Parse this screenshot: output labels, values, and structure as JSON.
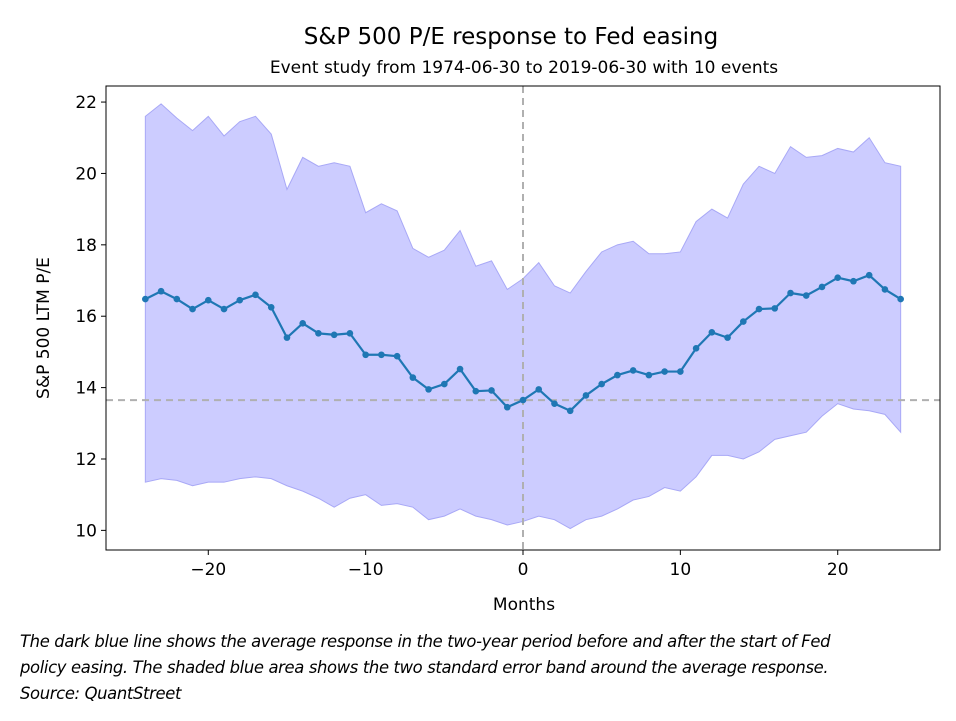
{
  "chart_data": {
    "type": "line",
    "title": "S&P 500 P/E response to Fed easing",
    "subtitle": "Event study from 1974-06-30 to 2019-06-30 with 10 events",
    "xlabel": "Months",
    "ylabel": "S&P 500 LTM P/E",
    "xlim": [
      -26.5,
      26.5
    ],
    "ylim": [
      9.45,
      22.45
    ],
    "xticks": [
      -20,
      -10,
      0,
      10,
      20
    ],
    "yticks": [
      10,
      12,
      14,
      16,
      18,
      20,
      22
    ],
    "xtick_labels": [
      "−20",
      "−10",
      "0",
      "10",
      "20"
    ],
    "ytick_labels": [
      "10",
      "12",
      "14",
      "16",
      "18",
      "20",
      "22"
    ],
    "grid": false,
    "colors": {
      "line": "#1f77b4",
      "band": "#ccccff",
      "band_edge": "#a8a8f6",
      "reference": "#b0b0b0"
    },
    "reference_lines": {
      "vertical_x": 0,
      "horizontal_y": 13.65
    },
    "x": [
      -24,
      -23,
      -22,
      -21,
      -20,
      -19,
      -18,
      -17,
      -16,
      -15,
      -14,
      -13,
      -12,
      -11,
      -10,
      -9,
      -8,
      -7,
      -6,
      -5,
      -4,
      -3,
      -2,
      -1,
      0,
      1,
      2,
      3,
      4,
      5,
      6,
      7,
      8,
      9,
      10,
      11,
      12,
      13,
      14,
      15,
      16,
      17,
      18,
      19,
      20,
      21,
      22,
      23,
      24
    ],
    "series": [
      {
        "values": [
          16.48,
          16.7,
          16.48,
          16.2,
          16.45,
          16.2,
          16.45,
          16.6,
          16.25,
          15.4,
          15.8,
          15.52,
          15.48,
          15.52,
          14.92,
          14.92,
          14.88,
          14.28,
          13.95,
          14.1,
          14.52,
          13.9,
          13.92,
          13.45,
          13.65,
          13.95,
          13.55,
          13.35,
          13.78,
          14.1,
          14.35,
          14.48,
          14.35,
          14.45,
          14.45,
          15.1,
          15.55,
          15.4,
          15.85,
          16.2,
          16.22,
          16.65,
          16.58,
          16.82,
          17.08,
          16.98,
          17.15,
          16.75,
          16.48
        ]
      }
    ],
    "band": {
      "upper": [
        21.6,
        21.95,
        21.55,
        21.2,
        21.6,
        21.05,
        21.45,
        21.6,
        21.1,
        19.55,
        20.45,
        20.2,
        20.3,
        20.2,
        18.9,
        19.15,
        18.95,
        17.9,
        17.65,
        17.85,
        18.4,
        17.4,
        17.55,
        16.75,
        17.05,
        17.5,
        16.85,
        16.65,
        17.25,
        17.8,
        18.0,
        18.1,
        17.75,
        17.75,
        17.8,
        18.65,
        19.0,
        18.75,
        19.7,
        20.2,
        20.0,
        20.75,
        20.45,
        20.5,
        20.7,
        20.6,
        21.0,
        20.3,
        20.2
      ],
      "lower": [
        11.35,
        11.45,
        11.4,
        11.25,
        11.35,
        11.35,
        11.45,
        11.5,
        11.45,
        11.25,
        11.1,
        10.9,
        10.65,
        10.9,
        11.0,
        10.7,
        10.75,
        10.65,
        10.3,
        10.4,
        10.6,
        10.4,
        10.3,
        10.15,
        10.25,
        10.4,
        10.3,
        10.05,
        10.3,
        10.4,
        10.6,
        10.85,
        10.95,
        11.2,
        11.1,
        11.5,
        12.1,
        12.1,
        12.0,
        12.2,
        12.55,
        12.65,
        12.75,
        13.2,
        13.55,
        13.4,
        13.35,
        13.25,
        12.75
      ]
    }
  },
  "caption": {
    "line1": "The dark blue line shows the average response in the two-year period before and after the start of Fed",
    "line2": "policy easing. The shaded blue area shows the two standard error band around the average response.",
    "line3": "Source: QuantStreet"
  }
}
